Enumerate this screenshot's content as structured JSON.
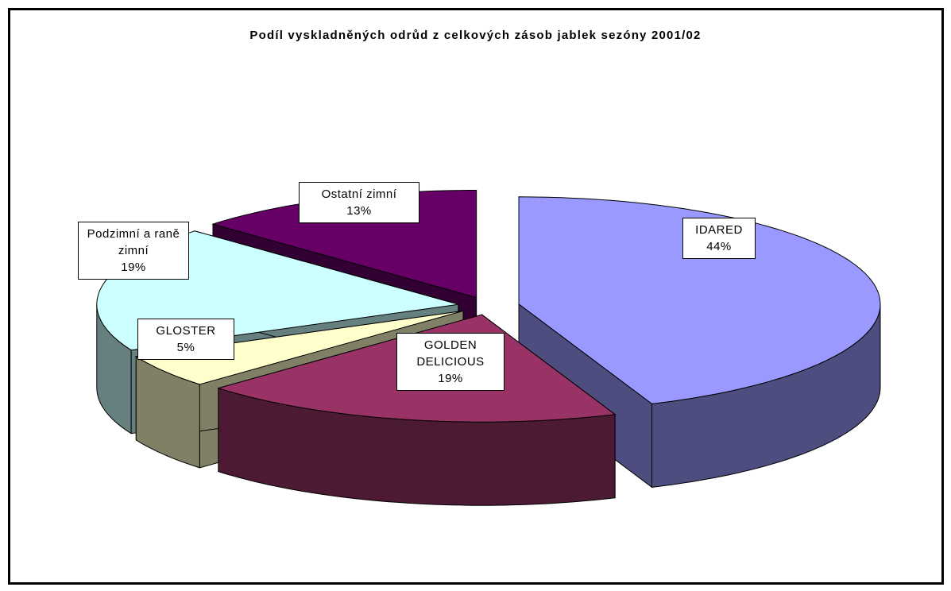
{
  "chart_data": {
    "type": "pie",
    "title": "Podíl vyskladněných odrůd z celkových zásob jablek sezóny 2001/02",
    "categories": [
      "IDARED",
      "GOLDEN DELICIOUS",
      "GLOSTER",
      "Podzimní a raně zimní",
      "Ostatní zimní"
    ],
    "values": [
      44,
      19,
      5,
      19,
      13
    ],
    "value_labels": [
      "44%",
      "19%",
      "5%",
      "19%",
      "13%"
    ],
    "colors": [
      "#9999ff",
      "#993366",
      "#ffffcc",
      "#ccffff",
      "#660066"
    ]
  }
}
